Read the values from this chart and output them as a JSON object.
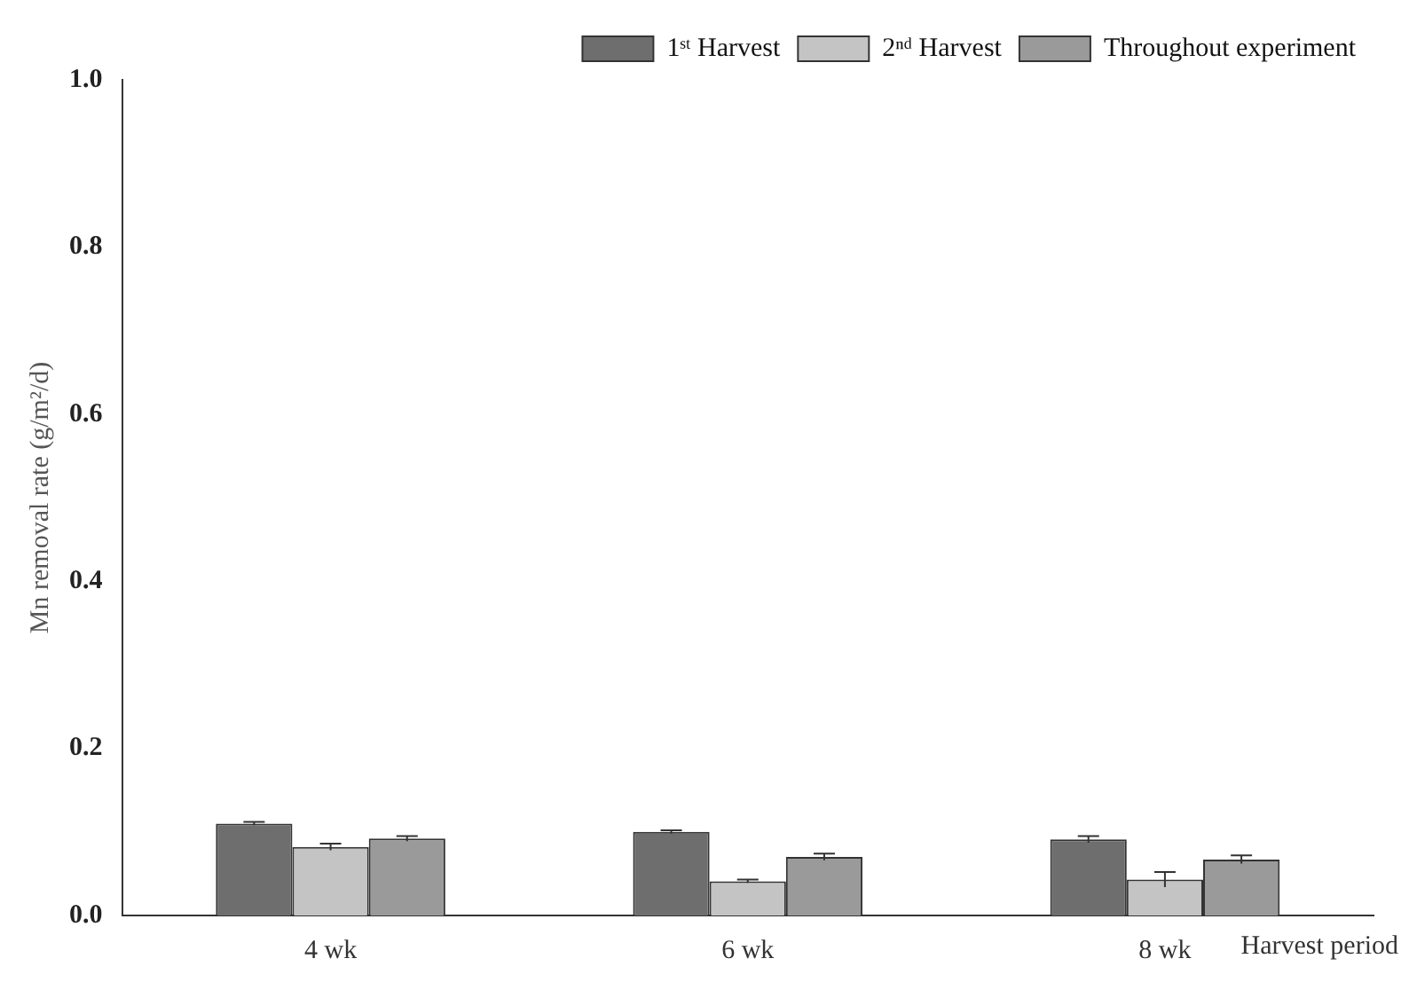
{
  "chart_data": {
    "type": "bar",
    "ylabel": "Mn removal rate (g/m²/d)",
    "xlabel": "Harvest period",
    "categories": [
      "4 wk",
      "6 wk",
      "8 wk"
    ],
    "series": [
      {
        "name": "1ˢᵗ Harvest",
        "color": "#6e6e6e",
        "values": [
          0.11,
          0.1,
          0.091
        ],
        "errors": [
          0.002,
          0.002,
          0.004
        ]
      },
      {
        "name": "2ⁿᵈ Harvest",
        "color": "#c4c4c4",
        "values": [
          0.082,
          0.041,
          0.043
        ],
        "errors": [
          0.004,
          0.002,
          0.009
        ]
      },
      {
        "name": "Throughout experiment",
        "color": "#9a9a9a",
        "values": [
          0.092,
          0.07,
          0.067
        ],
        "errors": [
          0.003,
          0.004,
          0.005
        ]
      }
    ],
    "ylim": [
      0,
      1.0
    ],
    "yticks": [
      {
        "value": 0,
        "label": "0.0"
      },
      {
        "value": 0.2,
        "label": "0.2"
      },
      {
        "value": 0.4,
        "label": "0.4"
      },
      {
        "value": 0.6,
        "label": "0.6"
      },
      {
        "value": 0.8,
        "label": "0.8"
      },
      {
        "value": 1.0,
        "label": "1.0"
      }
    ],
    "grid": false,
    "legend": "top right"
  }
}
